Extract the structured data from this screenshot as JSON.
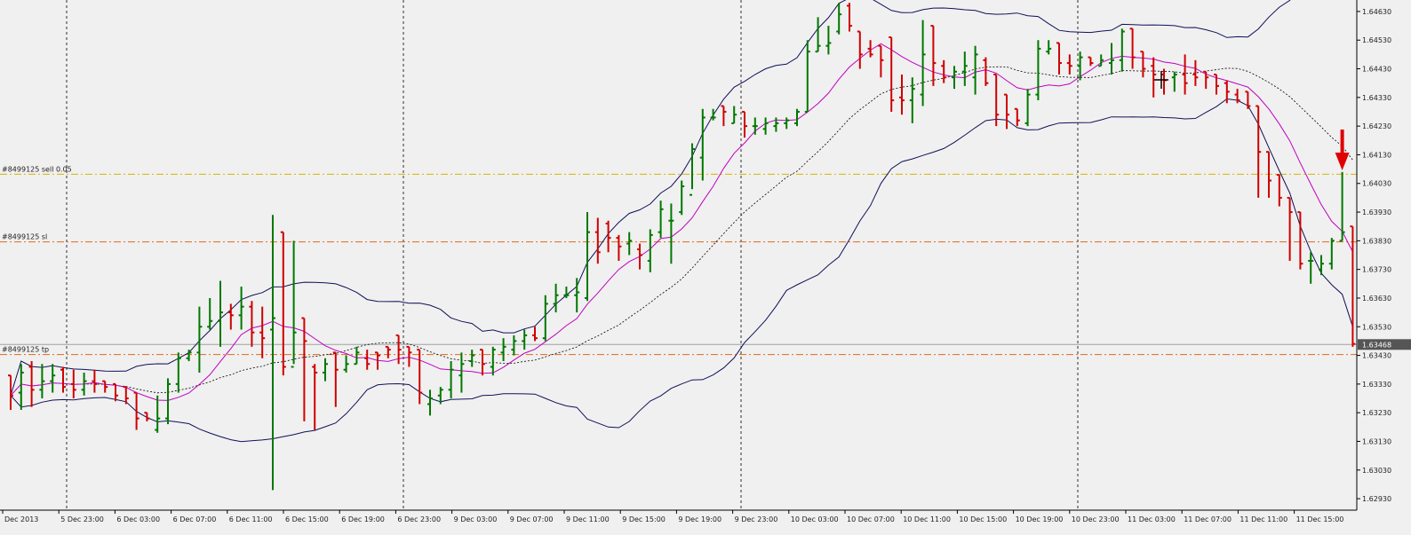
{
  "chart_data": {
    "type": "bar",
    "chart_style": "ohlc-bars",
    "instrument_hint": "",
    "x_labels": [
      "Dec 2013",
      "5 Dec 23:00",
      "6 Dec 03:00",
      "6 Dec 07:00",
      "6 Dec 11:00",
      "6 Dec 15:00",
      "6 Dec 19:00",
      "6 Dec 23:00",
      "9 Dec 03:00",
      "9 Dec 07:00",
      "9 Dec 11:00",
      "9 Dec 15:00",
      "9 Dec 19:00",
      "9 Dec 23:00",
      "10 Dec 03:00",
      "10 Dec 07:00",
      "10 Dec 11:00",
      "10 Dec 15:00",
      "10 Dec 19:00",
      "10 Dec 23:00",
      "11 Dec 03:00",
      "11 Dec 07:00",
      "11 Dec 11:00",
      "11 Dec 15:00"
    ],
    "y_ticks": [
      "1.64630",
      "1.64530",
      "1.64430",
      "1.64330",
      "1.64230",
      "1.64130",
      "1.64030",
      "1.63930",
      "1.63830",
      "1.63730",
      "1.63630",
      "1.63530",
      "1.63430",
      "1.63330",
      "1.63230",
      "1.63130",
      "1.63030",
      "1.62930"
    ],
    "ylim": [
      1.6289,
      1.6467
    ],
    "grid": "vertical-dotted",
    "current_price": "1.63468",
    "colors": {
      "up": "#007800",
      "down": "#d00000",
      "bb": "#10105a",
      "ma": "#c000c0",
      "ma_dotted": "#000000",
      "order_line": "#d7b400",
      "sl_line": "#e06a1c",
      "tp_line": "#e06a1c",
      "price_line": "#a0a0a0",
      "arrow": "#e00000"
    },
    "orders": [
      {
        "label": "#8499125 sell 0.05",
        "price": 1.64062
      },
      {
        "label": "#8499125 sl",
        "price": 1.63826
      },
      {
        "label": "#8499125 tp",
        "price": 1.63433
      }
    ],
    "bars": [
      [
        1.6336,
        1.6336,
        1.6324,
        1.6329
      ],
      [
        1.633,
        1.634,
        1.6324,
        1.6337
      ],
      [
        1.6339,
        1.6341,
        1.6325,
        1.6331
      ],
      [
        1.6331,
        1.634,
        1.6328,
        1.6334
      ],
      [
        1.6334,
        1.634,
        1.633,
        1.6336
      ],
      [
        1.6338,
        1.6339,
        1.633,
        1.6332
      ],
      [
        1.6333,
        1.6338,
        1.6328,
        1.6331
      ],
      [
        1.6331,
        1.6337,
        1.6329,
        1.6334
      ],
      [
        1.6334,
        1.6338,
        1.633,
        1.6333
      ],
      [
        1.6334,
        1.6334,
        1.633,
        1.6332
      ],
      [
        1.6333,
        1.6333,
        1.6327,
        1.6329
      ],
      [
        1.6332,
        1.6332,
        1.6326,
        1.6328
      ],
      [
        1.633,
        1.633,
        1.6317,
        1.6321
      ],
      [
        1.6323,
        1.6323,
        1.632,
        1.6321
      ],
      [
        1.6317,
        1.6329,
        1.6316,
        1.6321
      ],
      [
        1.6321,
        1.6335,
        1.6319,
        1.6333
      ],
      [
        1.6333,
        1.6344,
        1.633,
        1.6342
      ],
      [
        1.6342,
        1.6345,
        1.6341,
        1.6344
      ],
      [
        1.6344,
        1.636,
        1.6337,
        1.6353
      ],
      [
        1.6353,
        1.6363,
        1.6352,
        1.6355
      ],
      [
        1.6355,
        1.6369,
        1.6346,
        1.6358
      ],
      [
        1.6358,
        1.6361,
        1.6352,
        1.6357
      ],
      [
        1.6357,
        1.6367,
        1.6352,
        1.636
      ],
      [
        1.636,
        1.6362,
        1.6346,
        1.6351
      ],
      [
        1.6351,
        1.636,
        1.6342,
        1.6349
      ],
      [
        1.6352,
        1.6392,
        1.6296,
        1.6356
      ],
      [
        1.6386,
        1.6386,
        1.6336,
        1.6339
      ],
      [
        1.6339,
        1.6383,
        1.634,
        1.6351
      ],
      [
        1.6356,
        1.6356,
        1.632,
        1.6348
      ],
      [
        1.6339,
        1.634,
        1.6317,
        1.6337
      ],
      [
        1.6337,
        1.6342,
        1.6334,
        1.634
      ],
      [
        1.6344,
        1.6344,
        1.6325,
        1.6338
      ],
      [
        1.6338,
        1.6343,
        1.6337,
        1.634
      ],
      [
        1.634,
        1.6346,
        1.634,
        1.6344
      ],
      [
        1.6342,
        1.6345,
        1.6338,
        1.634
      ],
      [
        1.6344,
        1.6344,
        1.6338,
        1.6343
      ],
      [
        1.6346,
        1.6346,
        1.6342,
        1.6345
      ],
      [
        1.635,
        1.635,
        1.634,
        1.6345
      ],
      [
        1.6346,
        1.6346,
        1.6339,
        1.6344
      ],
      [
        1.6345,
        1.6345,
        1.6326,
        1.633
      ],
      [
        1.6326,
        1.6331,
        1.6322,
        1.6328
      ],
      [
        1.6329,
        1.6332,
        1.6326,
        1.6331
      ],
      [
        1.6331,
        1.6341,
        1.6328,
        1.6338
      ],
      [
        1.6336,
        1.6344,
        1.633,
        1.634
      ],
      [
        1.6341,
        1.6345,
        1.6339,
        1.6343
      ],
      [
        1.6345,
        1.6345,
        1.6336,
        1.634
      ],
      [
        1.6339,
        1.6346,
        1.6336,
        1.6345
      ],
      [
        1.6344,
        1.6349,
        1.6341,
        1.6346
      ],
      [
        1.6345,
        1.635,
        1.6343,
        1.6348
      ],
      [
        1.6348,
        1.6352,
        1.6345,
        1.635
      ],
      [
        1.635,
        1.6353,
        1.6348,
        1.6349
      ],
      [
        1.6349,
        1.6364,
        1.6348,
        1.6361
      ],
      [
        1.6361,
        1.6368,
        1.6358,
        1.6364
      ],
      [
        1.6364,
        1.6367,
        1.6363,
        1.6364
      ],
      [
        1.6364,
        1.637,
        1.6358,
        1.6365
      ],
      [
        1.6363,
        1.6393,
        1.6362,
        1.6386
      ],
      [
        1.6386,
        1.6391,
        1.6375,
        1.6379
      ],
      [
        1.6389,
        1.639,
        1.6379,
        1.6384
      ],
      [
        1.6384,
        1.6385,
        1.6376,
        1.6381
      ],
      [
        1.6382,
        1.6386,
        1.6378,
        1.6383
      ],
      [
        1.638,
        1.6382,
        1.6373,
        1.6378
      ],
      [
        1.6376,
        1.6387,
        1.6372,
        1.6385
      ],
      [
        1.6386,
        1.6397,
        1.6384,
        1.6394
      ],
      [
        1.639,
        1.6396,
        1.6375,
        1.639
      ],
      [
        1.6393,
        1.6404,
        1.6392,
        1.6402
      ],
      [
        1.6399,
        1.6417,
        1.6401,
        1.6415
      ],
      [
        1.6412,
        1.6429,
        1.6404,
        1.6426
      ],
      [
        1.6426,
        1.6429,
        1.6425,
        1.6426
      ],
      [
        1.643,
        1.643,
        1.6423,
        1.6428
      ],
      [
        1.6424,
        1.643,
        1.6424,
        1.6427
      ],
      [
        1.6428,
        1.6428,
        1.6419,
        1.6423
      ],
      [
        1.6423,
        1.6426,
        1.642,
        1.6423
      ],
      [
        1.6422,
        1.6426,
        1.642,
        1.6424
      ],
      [
        1.6423,
        1.6426,
        1.6421,
        1.6424
      ],
      [
        1.6424,
        1.6426,
        1.6422,
        1.6425
      ],
      [
        1.6424,
        1.6429,
        1.6423,
        1.6428
      ],
      [
        1.6428,
        1.6453,
        1.6428,
        1.6449
      ],
      [
        1.6449,
        1.6461,
        1.6449,
        1.6451
      ],
      [
        1.6451,
        1.6458,
        1.6448,
        1.6452
      ],
      [
        1.6456,
        1.6466,
        1.6455,
        1.6462
      ],
      [
        1.6465,
        1.6466,
        1.6456,
        1.6458
      ],
      [
        1.6456,
        1.6456,
        1.6443,
        1.6448
      ],
      [
        1.645,
        1.6453,
        1.6447,
        1.6448
      ],
      [
        1.6451,
        1.6451,
        1.644,
        1.6446
      ],
      [
        1.6454,
        1.6454,
        1.6428,
        1.6432
      ],
      [
        1.6433,
        1.6441,
        1.6427,
        1.6432
      ],
      [
        1.6432,
        1.644,
        1.6424,
        1.6436
      ],
      [
        1.6434,
        1.646,
        1.643,
        1.6448
      ],
      [
        1.6458,
        1.6458,
        1.6437,
        1.6445
      ],
      [
        1.6444,
        1.6446,
        1.6438,
        1.644
      ],
      [
        1.644,
        1.6444,
        1.6436,
        1.6442
      ],
      [
        1.6442,
        1.6449,
        1.6437,
        1.6444
      ],
      [
        1.644,
        1.6451,
        1.6434,
        1.6448
      ],
      [
        1.6446,
        1.6447,
        1.6437,
        1.6438
      ],
      [
        1.6441,
        1.6441,
        1.6423,
        1.6427
      ],
      [
        1.6434,
        1.6434,
        1.6422,
        1.6427
      ],
      [
        1.6429,
        1.6429,
        1.6423,
        1.6425
      ],
      [
        1.6424,
        1.6436,
        1.6423,
        1.6434
      ],
      [
        1.6434,
        1.6453,
        1.6432,
        1.645
      ],
      [
        1.6449,
        1.6453,
        1.6448,
        1.645
      ],
      [
        1.6452,
        1.6452,
        1.6441,
        1.6445
      ],
      [
        1.6445,
        1.6448,
        1.6441,
        1.6444
      ],
      [
        1.6444,
        1.6449,
        1.6439,
        1.6447
      ],
      [
        1.6447,
        1.6447,
        1.6444,
        1.6445
      ],
      [
        1.6444,
        1.6448,
        1.6444,
        1.6446
      ],
      [
        1.6445,
        1.6452,
        1.6441,
        1.6446
      ],
      [
        1.6446,
        1.6457,
        1.6442,
        1.6456
      ],
      [
        1.6457,
        1.6457,
        1.6443,
        1.6447
      ],
      [
        1.6449,
        1.6449,
        1.644,
        1.6443
      ],
      [
        1.6444,
        1.6447,
        1.6433,
        1.6441
      ],
      [
        1.6441,
        1.6443,
        1.6434,
        1.6439
      ],
      [
        1.644,
        1.6442,
        1.6435,
        1.6441
      ],
      [
        1.6441,
        1.6448,
        1.6434,
        1.6438
      ],
      [
        1.6441,
        1.6446,
        1.6437,
        1.644
      ],
      [
        1.6442,
        1.6442,
        1.6436,
        1.644
      ],
      [
        1.6441,
        1.6441,
        1.6434,
        1.6437
      ],
      [
        1.6438,
        1.6439,
        1.6431,
        1.6435
      ],
      [
        1.6434,
        1.6436,
        1.6431,
        1.6432
      ],
      [
        1.6435,
        1.6435,
        1.6429,
        1.643
      ],
      [
        1.643,
        1.643,
        1.6398,
        1.6414
      ],
      [
        1.6414,
        1.6414,
        1.6398,
        1.6404
      ],
      [
        1.6406,
        1.6406,
        1.6395,
        1.6398
      ],
      [
        1.6398,
        1.6398,
        1.6376,
        1.6393
      ],
      [
        1.6393,
        1.6393,
        1.6373,
        1.6375
      ],
      [
        1.6376,
        1.6379,
        1.6368,
        1.6376
      ],
      [
        1.6373,
        1.6378,
        1.6371,
        1.6375
      ],
      [
        1.6375,
        1.6384,
        1.6373,
        1.6383
      ],
      [
        1.6383,
        1.6407,
        1.6383,
        1.6386
      ],
      [
        1.6388,
        1.6388,
        1.6346,
        1.6347
      ]
    ]
  }
}
